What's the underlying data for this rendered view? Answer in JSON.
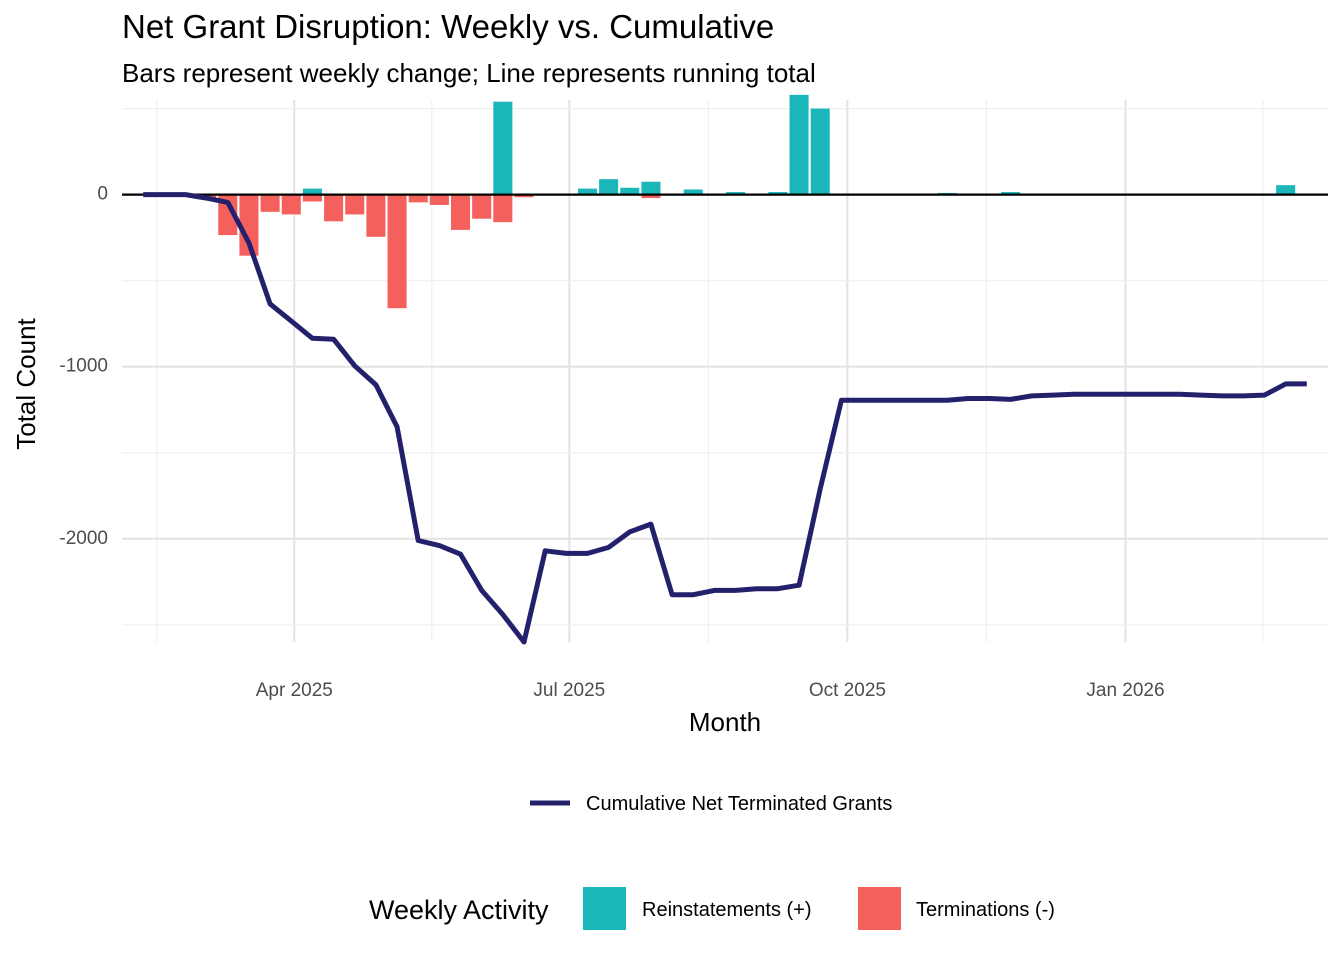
{
  "title": "Net Grant Disruption: Weekly vs. Cumulative",
  "subtitle": "Bars represent weekly change; Line represents running total",
  "colors": {
    "reinstatement": "#1bb6b9",
    "termination": "#f4615d",
    "cumulative": "#24216c",
    "grid_major": "#e3e3e3",
    "grid_minor": "#efefef"
  },
  "chart_data": {
    "type": "bar+line",
    "title": "Net Grant Disruption: Weekly vs. Cumulative",
    "subtitle": "Bars represent weekly change; Line represents running total",
    "xlabel": "Month",
    "ylabel": "Total Count",
    "ylim": [
      -2600,
      550
    ],
    "y_ticks": [
      0,
      -1000,
      -2000
    ],
    "y_tick_labels": [
      "0",
      "-1000",
      "-2000"
    ],
    "xlim": [
      "2025-02-03",
      "2026-03-09"
    ],
    "x_ticks": [
      "2025-04-01",
      "2025-07-01",
      "2025-10-01",
      "2026-01-01"
    ],
    "x_tick_labels": [
      "Apr 2025",
      "Jul 2025",
      "Oct 2025",
      "Jan 2026"
    ],
    "grid": true,
    "legend_position": "bottom",
    "series": [
      {
        "name": "Reinstatements (+)",
        "type": "bar",
        "x": [
          "2025-04-07",
          "2025-06-09",
          "2025-07-07",
          "2025-07-14",
          "2025-07-21",
          "2025-07-28",
          "2025-08-11",
          "2025-08-25",
          "2025-09-08",
          "2025-09-15",
          "2025-09-22",
          "2025-11-03",
          "2025-11-24",
          "2026-02-23"
        ],
        "values": [
          35,
          540,
          35,
          90,
          40,
          75,
          30,
          15,
          15,
          580,
          500,
          10,
          15,
          55
        ]
      },
      {
        "name": "Terminations (-)",
        "type": "bar",
        "x": [
          "2025-03-03",
          "2025-03-10",
          "2025-03-17",
          "2025-03-24",
          "2025-03-31",
          "2025-04-07",
          "2025-04-14",
          "2025-04-21",
          "2025-04-28",
          "2025-05-05",
          "2025-05-12",
          "2025-05-19",
          "2025-05-26",
          "2025-06-02",
          "2025-06-09",
          "2025-06-16",
          "2025-07-28"
        ],
        "values": [
          -25,
          -235,
          -355,
          -100,
          -115,
          -40,
          -155,
          -115,
          -245,
          -660,
          -45,
          -60,
          -205,
          -140,
          -160,
          -15,
          -20
        ]
      },
      {
        "name": "Cumulative Net Terminated Grants",
        "type": "line",
        "x": [
          "2025-02-10",
          "2025-02-17",
          "2025-02-24",
          "2025-03-03",
          "2025-03-10",
          "2025-03-17",
          "2025-03-24",
          "2025-03-31",
          "2025-04-07",
          "2025-04-14",
          "2025-04-21",
          "2025-04-28",
          "2025-05-05",
          "2025-05-12",
          "2025-05-19",
          "2025-05-26",
          "2025-06-02",
          "2025-06-09",
          "2025-06-16",
          "2025-06-23",
          "2025-06-30",
          "2025-07-07",
          "2025-07-14",
          "2025-07-21",
          "2025-07-28",
          "2025-08-04",
          "2025-08-11",
          "2025-08-18",
          "2025-08-25",
          "2025-09-01",
          "2025-09-08",
          "2025-09-15",
          "2025-09-22",
          "2025-09-29",
          "2025-10-06",
          "2025-10-13",
          "2025-10-20",
          "2025-10-27",
          "2025-11-03",
          "2025-11-10",
          "2025-11-17",
          "2025-11-24",
          "2025-12-01",
          "2025-12-08",
          "2025-12-15",
          "2025-12-22",
          "2025-12-29",
          "2026-01-05",
          "2026-01-12",
          "2026-01-19",
          "2026-01-26",
          "2026-02-02",
          "2026-02-09",
          "2026-02-16",
          "2026-02-23",
          "2026-03-02"
        ],
        "values": [
          0,
          0,
          0,
          -20,
          -45,
          -280,
          -635,
          -735,
          -835,
          -840,
          -995,
          -1105,
          -1350,
          -2010,
          -2040,
          -2090,
          -2300,
          -2440,
          -2600,
          -2070,
          -2085,
          -2085,
          -2050,
          -1960,
          -1915,
          -2325,
          -2325,
          -2300,
          -2300,
          -2290,
          -2290,
          -2270,
          -1710,
          -1195,
          -1195,
          -1195,
          -1195,
          -1195,
          -1195,
          -1185,
          -1185,
          -1190,
          -1170,
          -1165,
          -1160,
          -1160,
          -1160,
          -1160,
          -1160,
          -1160,
          -1165,
          -1170,
          -1170,
          -1165,
          -1100,
          -1100
        ]
      }
    ]
  },
  "legend": {
    "line_label": "Cumulative Net Terminated Grants",
    "fill_title": "Weekly Activity",
    "fill_items": [
      {
        "label": "Reinstatements (+)",
        "color": "#1bb6b9"
      },
      {
        "label": "Terminations (-)",
        "color": "#f4615d"
      }
    ]
  }
}
